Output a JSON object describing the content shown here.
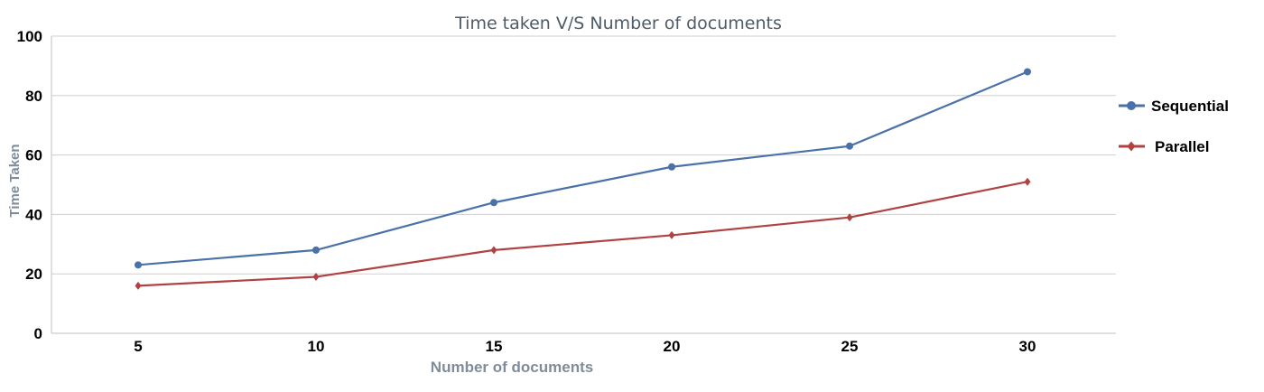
{
  "chart_data": {
    "type": "line",
    "title": "Time taken V/S Number of documents",
    "xlabel": "Number of documents",
    "ylabel": "Time Taken",
    "categories": [
      "5",
      "10",
      "15",
      "20",
      "25",
      "30"
    ],
    "ylim": [
      0,
      100
    ],
    "yticks": [
      "0",
      "20",
      "40",
      "60",
      "80",
      "100"
    ],
    "grid": true,
    "legend_position": "right",
    "series": [
      {
        "name": "Sequential",
        "color": "#4a72a8",
        "marker": "circle",
        "values": [
          23,
          28,
          44,
          56,
          63,
          88
        ]
      },
      {
        "name": "Parallel",
        "color": "#b04242",
        "marker": "diamond",
        "values": [
          16,
          19,
          28,
          33,
          39,
          51
        ]
      }
    ]
  }
}
